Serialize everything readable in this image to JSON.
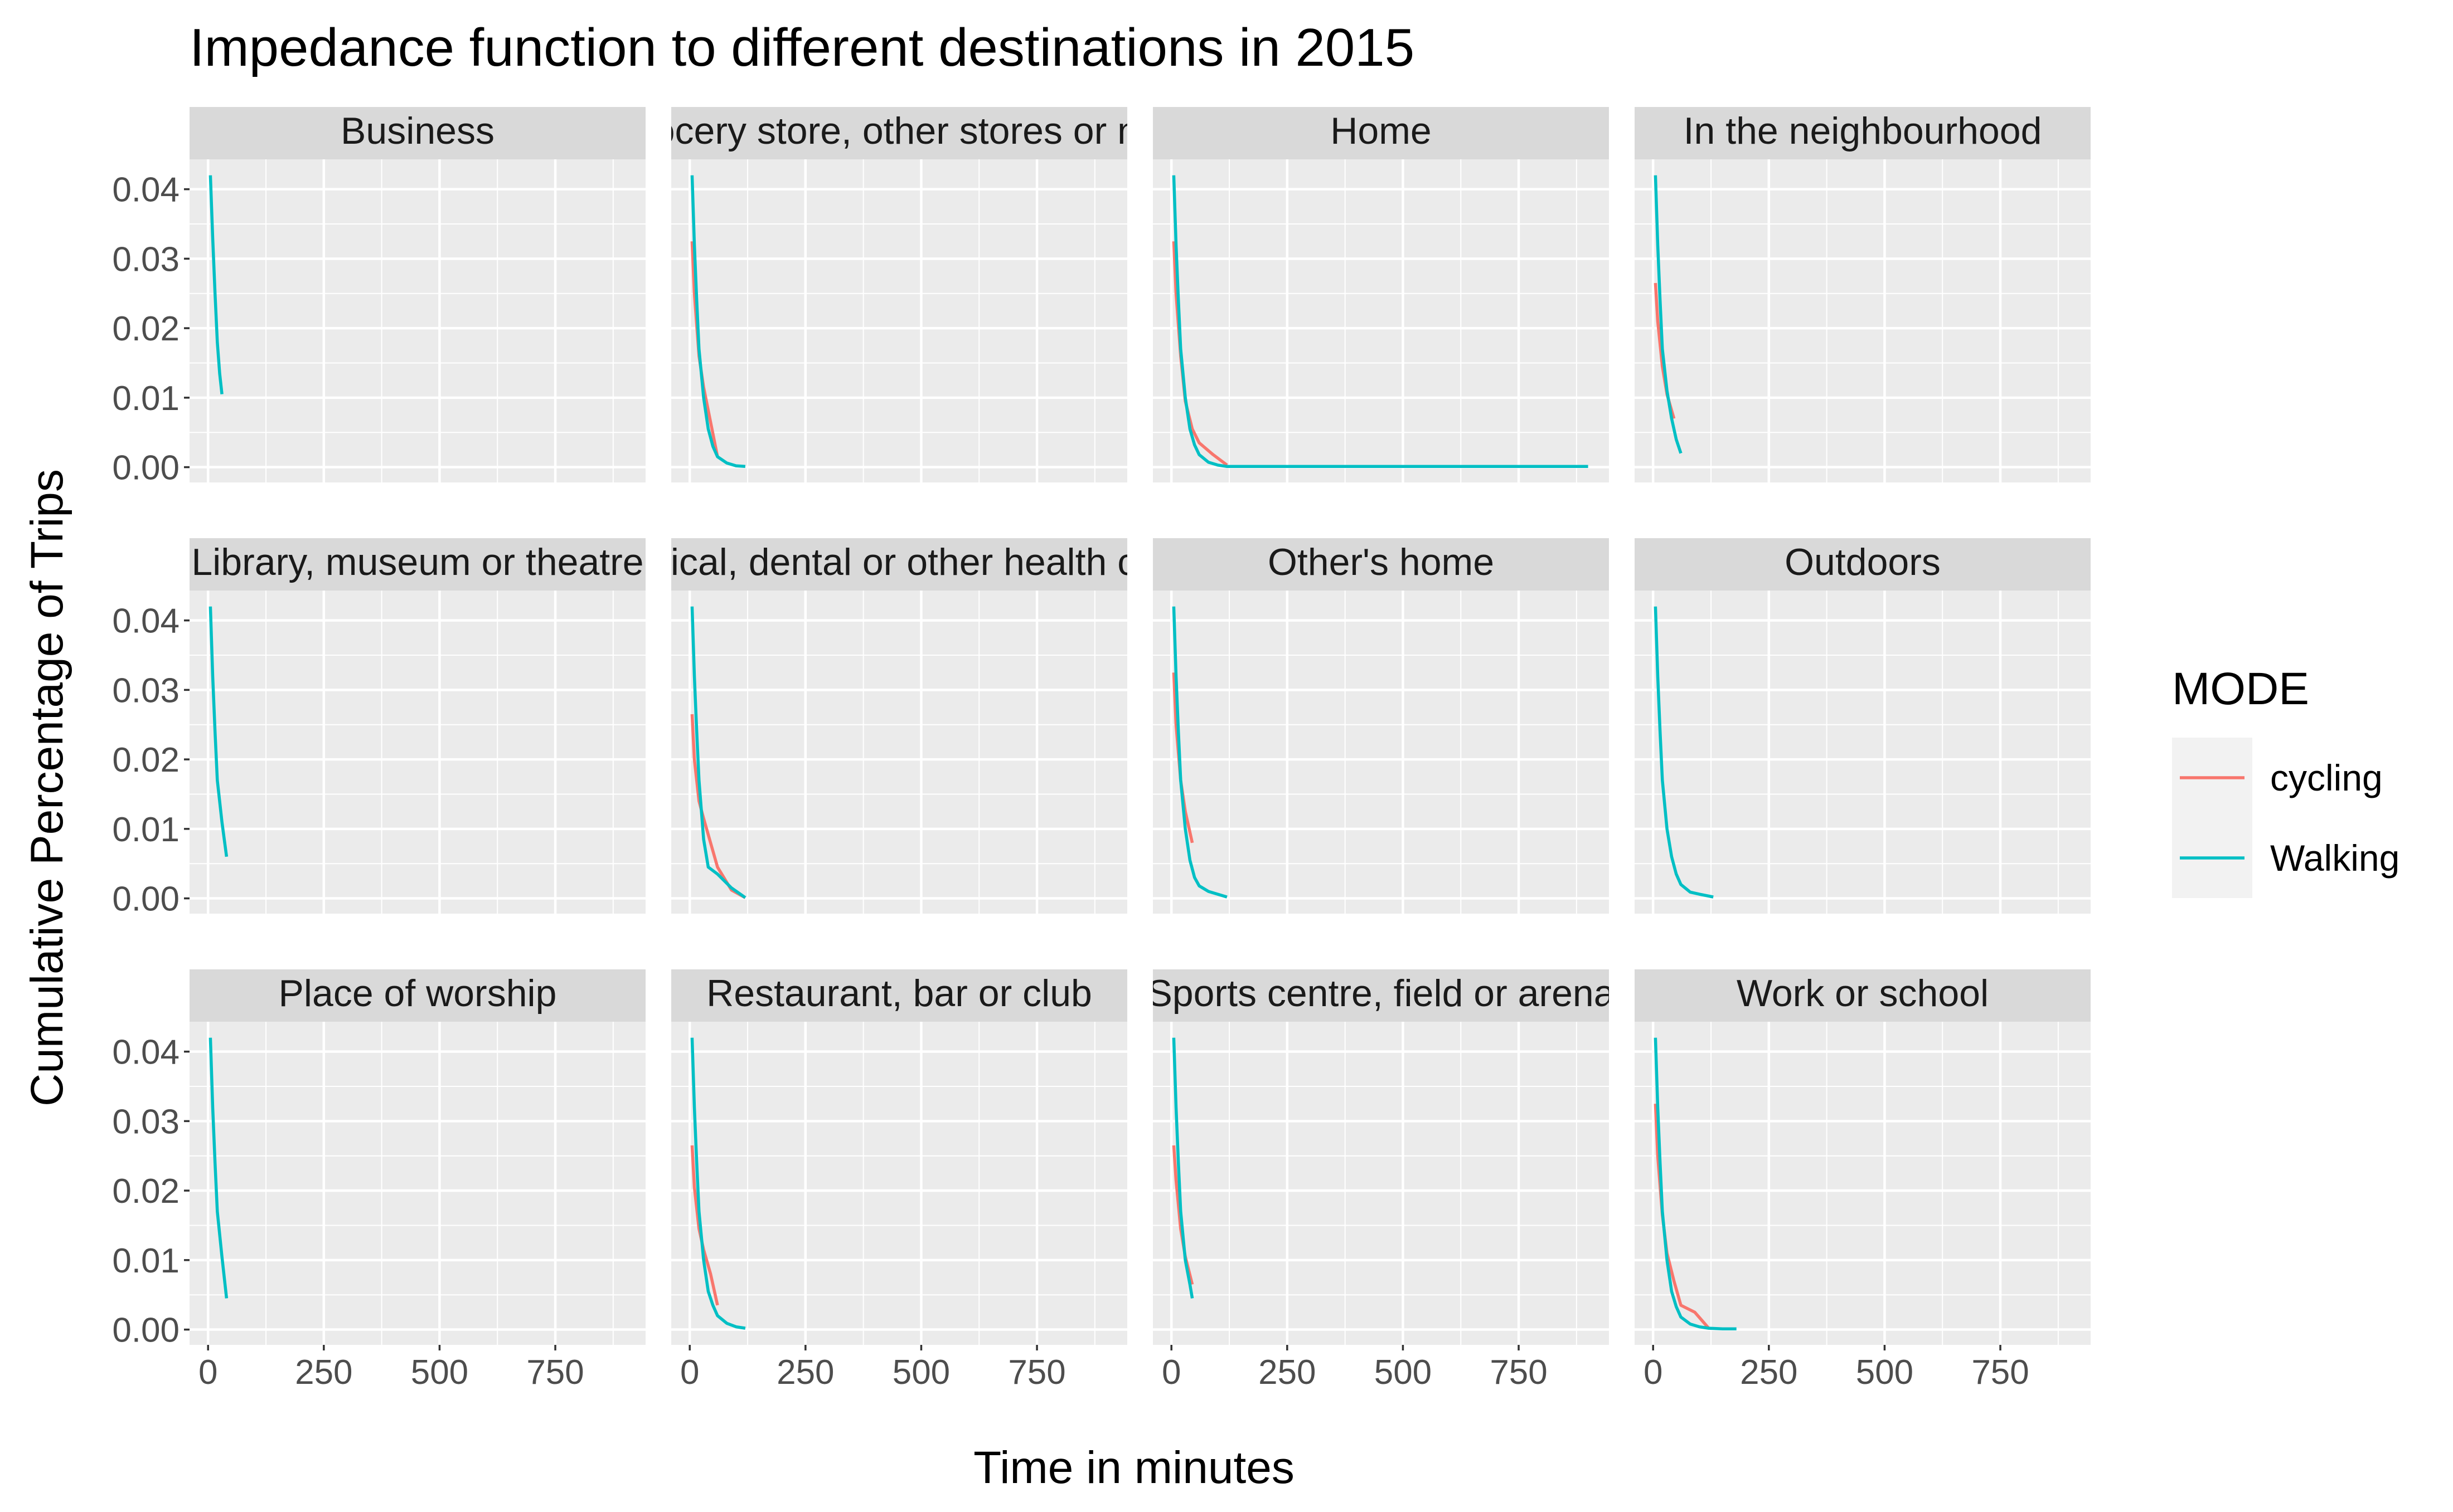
{
  "chart_data": {
    "type": "line",
    "title": "Impedance function to different destinations in 2015",
    "xlabel": "Time in minutes",
    "ylabel": "Cumulative Percentage of Trips",
    "xlim": [
      -40,
      945
    ],
    "ylim": [
      -0.0022,
      0.0443
    ],
    "x_ticks": [
      0,
      250,
      500,
      750
    ],
    "x_tick_labels": [
      "0",
      "250",
      "500",
      "750"
    ],
    "y_ticks": [
      0,
      0.01,
      0.02,
      0.03,
      0.04
    ],
    "y_tick_labels": [
      "0.00",
      "0.01",
      "0.02",
      "0.03",
      "0.04"
    ],
    "grid": true,
    "facet_layout": {
      "rows": 3,
      "cols": 4
    },
    "legend": {
      "title": "MODE",
      "position": "right",
      "entries": [
        {
          "name": "cycling",
          "color": "#F8766D"
        },
        {
          "name": "Walking",
          "color": "#00BFC4"
        }
      ]
    },
    "facets": [
      {
        "label": "Business",
        "series": [
          {
            "name": "Walking",
            "x": [
              5,
              10,
              15,
              20,
              25,
              30
            ],
            "y": [
              0.042,
              0.033,
              0.025,
              0.018,
              0.0135,
              0.0105
            ]
          }
        ]
      },
      {
        "label": "Grocery store, other stores or mall",
        "series": [
          {
            "name": "cycling",
            "x": [
              5,
              10,
              20,
              30,
              60
            ],
            "y": [
              0.0325,
              0.025,
              0.016,
              0.0115,
              0.0015
            ]
          },
          {
            "name": "Walking",
            "x": [
              5,
              10,
              15,
              20,
              30,
              40,
              50,
              60,
              80,
              100,
              120
            ],
            "y": [
              0.042,
              0.032,
              0.024,
              0.017,
              0.01,
              0.0055,
              0.003,
              0.0015,
              0.0006,
              0.0002,
              0.0001
            ]
          }
        ]
      },
      {
        "label": "Home",
        "series": [
          {
            "name": "cycling",
            "x": [
              5,
              10,
              20,
              30,
              45,
              60,
              90,
              120
            ],
            "y": [
              0.0325,
              0.025,
              0.016,
              0.0095,
              0.0055,
              0.0035,
              0.0018,
              0.0003
            ]
          },
          {
            "name": "Walking",
            "x": [
              5,
              10,
              15,
              20,
              30,
              40,
              50,
              60,
              80,
              100,
              120,
              150,
              200,
              300,
              500,
              700,
              900
            ],
            "y": [
              0.042,
              0.032,
              0.024,
              0.017,
              0.01,
              0.0055,
              0.0032,
              0.0018,
              0.0007,
              0.0003,
              0.0001,
              0.0001,
              0.0001,
              0.0001,
              0.0001,
              0.0001,
              0.0001
            ]
          }
        ]
      },
      {
        "label": "In the neighbourhood",
        "series": [
          {
            "name": "cycling",
            "x": [
              5,
              10,
              20,
              30,
              45
            ],
            "y": [
              0.0265,
              0.021,
              0.0145,
              0.0105,
              0.007
            ]
          },
          {
            "name": "Walking",
            "x": [
              5,
              10,
              15,
              20,
              30,
              40,
              50,
              60
            ],
            "y": [
              0.042,
              0.032,
              0.024,
              0.017,
              0.011,
              0.007,
              0.004,
              0.002
            ]
          }
        ]
      },
      {
        "label": "Library, museum or theatre",
        "series": [
          {
            "name": "Walking",
            "x": [
              5,
              10,
              15,
              20,
              30,
              40
            ],
            "y": [
              0.042,
              0.032,
              0.024,
              0.017,
              0.011,
              0.006
            ]
          }
        ]
      },
      {
        "label": "Medical, dental or other health clinic",
        "series": [
          {
            "name": "cycling",
            "x": [
              5,
              10,
              20,
              30,
              60,
              90,
              120
            ],
            "y": [
              0.0265,
              0.02,
              0.014,
              0.0115,
              0.0045,
              0.0012,
              0.0001
            ]
          },
          {
            "name": "Walking",
            "x": [
              5,
              10,
              15,
              20,
              30,
              40,
              60,
              90,
              120
            ],
            "y": [
              0.042,
              0.032,
              0.024,
              0.017,
              0.0085,
              0.0045,
              0.0035,
              0.0015,
              0.0001
            ]
          }
        ]
      },
      {
        "label": "Other's home",
        "series": [
          {
            "name": "cycling",
            "x": [
              5,
              10,
              20,
              30,
              45
            ],
            "y": [
              0.0325,
              0.025,
              0.017,
              0.0125,
              0.008
            ]
          },
          {
            "name": "Walking",
            "x": [
              5,
              10,
              15,
              20,
              30,
              40,
              50,
              60,
              80,
              100,
              120
            ],
            "y": [
              0.042,
              0.032,
              0.024,
              0.017,
              0.01,
              0.0055,
              0.003,
              0.0018,
              0.001,
              0.0006,
              0.0002
            ]
          }
        ]
      },
      {
        "label": "Outdoors",
        "series": [
          {
            "name": "Walking",
            "x": [
              5,
              10,
              15,
              20,
              30,
              40,
              50,
              60,
              80,
              100,
              130
            ],
            "y": [
              0.042,
              0.032,
              0.024,
              0.017,
              0.01,
              0.006,
              0.0035,
              0.002,
              0.0009,
              0.0006,
              0.0002
            ]
          }
        ]
      },
      {
        "label": "Place of worship",
        "series": [
          {
            "name": "Walking",
            "x": [
              5,
              10,
              15,
              20,
              30,
              40
            ],
            "y": [
              0.042,
              0.032,
              0.024,
              0.017,
              0.0105,
              0.0045
            ]
          }
        ]
      },
      {
        "label": "Restaurant, bar or club",
        "series": [
          {
            "name": "cycling",
            "x": [
              5,
              10,
              20,
              30,
              45,
              60
            ],
            "y": [
              0.0265,
              0.0205,
              0.0145,
              0.0115,
              0.008,
              0.0035
            ]
          },
          {
            "name": "Walking",
            "x": [
              5,
              10,
              15,
              20,
              30,
              40,
              50,
              60,
              80,
              100,
              120
            ],
            "y": [
              0.042,
              0.032,
              0.024,
              0.017,
              0.01,
              0.0055,
              0.0035,
              0.002,
              0.0009,
              0.0004,
              0.0002
            ]
          }
        ]
      },
      {
        "label": "Sports centre, field or arena",
        "series": [
          {
            "name": "cycling",
            "x": [
              5,
              10,
              20,
              30,
              45
            ],
            "y": [
              0.0265,
              0.0215,
              0.0145,
              0.0105,
              0.0065
            ]
          },
          {
            "name": "Walking",
            "x": [
              5,
              10,
              15,
              20,
              30,
              40,
              45
            ],
            "y": [
              0.042,
              0.032,
              0.024,
              0.017,
              0.01,
              0.0065,
              0.0045
            ]
          }
        ]
      },
      {
        "label": "Work or school",
        "series": [
          {
            "name": "cycling",
            "x": [
              5,
              10,
              20,
              30,
              45,
              60,
              90,
              120
            ],
            "y": [
              0.0325,
              0.025,
              0.0165,
              0.011,
              0.007,
              0.0035,
              0.0025,
              0.0002
            ]
          },
          {
            "name": "Walking",
            "x": [
              5,
              10,
              15,
              20,
              30,
              40,
              50,
              60,
              80,
              100,
              120,
              150,
              180
            ],
            "y": [
              0.042,
              0.032,
              0.024,
              0.017,
              0.01,
              0.0055,
              0.0033,
              0.0018,
              0.0008,
              0.0004,
              0.0002,
              0.0001,
              0.0001
            ]
          }
        ]
      }
    ]
  }
}
